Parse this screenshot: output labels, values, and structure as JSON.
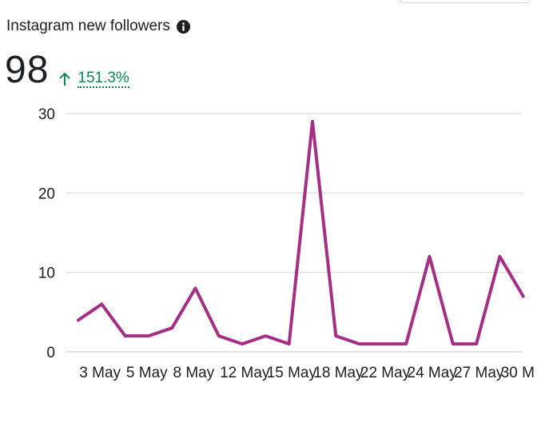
{
  "header": {
    "title": "Instagram new followers",
    "info_icon": "info-icon"
  },
  "metric": {
    "value": "98",
    "delta": "151.3%",
    "delta_icon": "arrow-up-icon",
    "delta_color": "#0e8a4f"
  },
  "chart_data": {
    "type": "line",
    "x_tick_labels": [
      "3 May",
      "5 May",
      "8 May",
      "12 May",
      "15 May",
      "18 May",
      "22 May",
      "24 May",
      "27 May",
      "30 M"
    ],
    "x_tick_index": [
      1,
      3,
      5,
      7,
      9,
      11,
      13,
      15,
      17,
      19
    ],
    "series": [
      {
        "values": [
          4,
          6,
          2,
          2,
          3,
          8,
          2,
          1,
          2,
          1,
          29,
          2,
          1,
          1,
          1,
          12,
          1,
          1,
          12,
          7
        ],
        "color": "#a52f84"
      }
    ],
    "ylim": [
      0,
      30
    ],
    "y_ticks": [
      0,
      10,
      20,
      30
    ],
    "grid": true
  }
}
